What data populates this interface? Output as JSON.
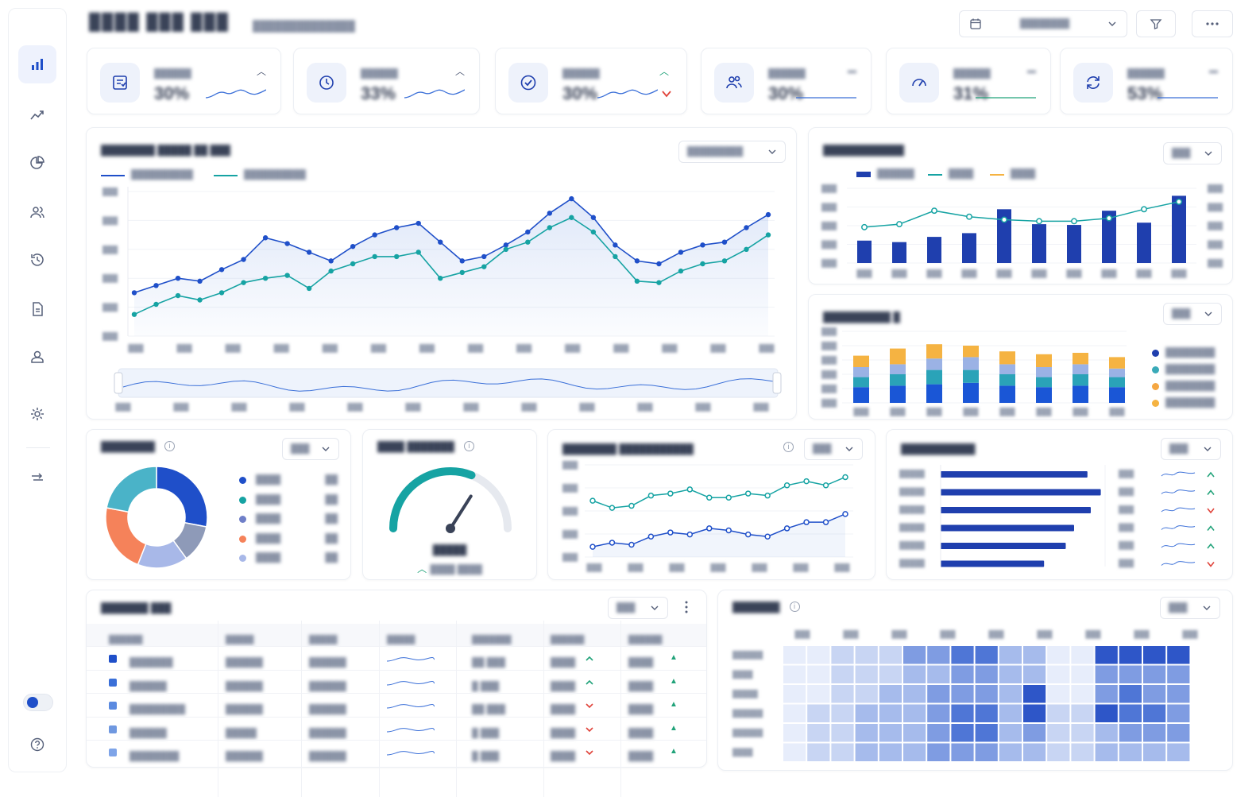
{
  "header": {
    "title": "████ ███ ███",
    "subtitle": "██████████████",
    "date_range": "████████"
  },
  "sidebar": {
    "items": [
      {
        "icon": "bar-chart-icon",
        "active": true
      },
      {
        "icon": "trend-line-icon"
      },
      {
        "icon": "pie-chart-icon"
      },
      {
        "icon": "users-icon"
      },
      {
        "icon": "history-icon"
      },
      {
        "icon": "document-icon"
      },
      {
        "icon": "user-badge-icon"
      },
      {
        "icon": "settings-icon"
      },
      {
        "icon": "switch-icon"
      },
      {
        "icon": "help-icon"
      }
    ]
  },
  "kpis": [
    {
      "icon": "report-icon",
      "label": "██████",
      "value": "30%",
      "trend": "up",
      "spark_color": "#3a6fd8"
    },
    {
      "icon": "clock-icon",
      "label": "██████",
      "value": "33%",
      "trend": "up",
      "spark_color": "#3a6fd8"
    },
    {
      "icon": "check-circle-icon",
      "label": "██████",
      "value": "30%",
      "trend": "down",
      "spark_color": "#3a6fd8"
    },
    {
      "icon": "users-icon",
      "label": "██████",
      "value": "30%",
      "trend": "flat",
      "spark_color": "#3a6fd8"
    },
    {
      "icon": "gauge-icon",
      "label": "██████",
      "value": "31%",
      "trend": "flat",
      "spark_color": "#22a37a"
    },
    {
      "icon": "refresh-icon",
      "label": "██████",
      "value": "53%",
      "trend": "flat",
      "spark_color": "#3a6fd8"
    }
  ],
  "main_chart": {
    "title": "████████ █████ ██ ███",
    "dropdown": "█████████",
    "legend": [
      "██████████",
      "██████████"
    ],
    "colors": [
      "#1f4fc9",
      "#16a3a3"
    ],
    "series_a": [
      30,
      35,
      40,
      38,
      46,
      53,
      68,
      64,
      58,
      52,
      62,
      70,
      75,
      78,
      65,
      52,
      55,
      63,
      72,
      85,
      95,
      82,
      63,
      52,
      50,
      58,
      63,
      65,
      75,
      84
    ],
    "series_b": [
      15,
      22,
      28,
      25,
      30,
      37,
      40,
      42,
      33,
      45,
      50,
      55,
      55,
      58,
      40,
      44,
      48,
      60,
      65,
      75,
      82,
      72,
      55,
      38,
      37,
      45,
      50,
      52,
      60,
      70
    ],
    "x_ticks": [
      "███",
      "███",
      "███",
      "███",
      "███",
      "███",
      "███",
      "███",
      "███",
      "███",
      "███",
      "███",
      "███",
      "███"
    ],
    "y_ticks": [
      "███",
      "███",
      "███",
      "███",
      "███",
      "███"
    ]
  },
  "combo_chart": {
    "title": "████████████",
    "dropdown": "███",
    "legend": [
      "██████",
      "████",
      "████"
    ],
    "bars": [
      30,
      28,
      35,
      40,
      72,
      52,
      51,
      70,
      54,
      90
    ],
    "line": [
      18,
      22,
      40,
      32,
      28,
      26,
      26,
      30,
      42,
      52
    ]
  },
  "stacked_chart": {
    "title": "██████████ █",
    "dropdown": "███",
    "stacks": [
      [
        22,
        14,
        14,
        16
      ],
      [
        24,
        16,
        14,
        22
      ],
      [
        26,
        20,
        16,
        20
      ],
      [
        28,
        18,
        18,
        16
      ],
      [
        24,
        16,
        14,
        18
      ],
      [
        22,
        14,
        14,
        18
      ],
      [
        24,
        16,
        14,
        16
      ],
      [
        22,
        14,
        12,
        16
      ]
    ],
    "stack_colors": [
      "#1a56d6",
      "#2aa3b8",
      "#8aa4e0",
      "#f5b342"
    ],
    "legend": [
      {
        "label": "████████",
        "color": "#1f3fae"
      },
      {
        "label": "████████",
        "color": "#3aaab8"
      },
      {
        "label": "████████",
        "color": "#f5a742"
      },
      {
        "label": "████████",
        "color": "#f5b342"
      }
    ]
  },
  "donut": {
    "title": "████████",
    "dropdown": "███",
    "slices": [
      {
        "value": 28,
        "color": "#1f4fc9",
        "label": "████",
        "pct": "██"
      },
      {
        "value": 12,
        "color": "#8e9ab8",
        "label": "████",
        "pct": "██"
      },
      {
        "value": 16,
        "color": "#a8b8e8",
        "label": "████",
        "pct": "██"
      },
      {
        "value": 22,
        "color": "#f5825a",
        "label": "████",
        "pct": "██"
      },
      {
        "value": 22,
        "color": "#4ab3c8",
        "label": "████",
        "pct": "██"
      }
    ],
    "legend_colors": [
      "#1f4fc9",
      "#16a3a3",
      "#6f7fc8",
      "#f5825a",
      "#a8b8e8"
    ]
  },
  "gauge": {
    "title": "████ ███████",
    "value_label": "█████",
    "sub_label": "████ ████",
    "level": 0.62,
    "color": "#16a3a3"
  },
  "dual_line": {
    "title": "████████ ███████████",
    "dropdown": "███",
    "series_a": [
      55,
      48,
      50,
      60,
      62,
      66,
      58,
      58,
      62,
      60,
      70,
      74,
      70,
      78
    ],
    "series_b": [
      10,
      14,
      12,
      20,
      24,
      22,
      28,
      26,
      22,
      20,
      28,
      34,
      34,
      42
    ],
    "colors": [
      "#16a3a3",
      "#1f4fc9"
    ]
  },
  "hbar": {
    "title": "███████████",
    "dropdown": "███",
    "values": [
      88,
      96,
      90,
      80,
      75,
      62
    ],
    "trends": [
      "up",
      "up",
      "down",
      "up",
      "up",
      "down"
    ]
  },
  "table": {
    "title": "███████ ███",
    "dropdown": "███",
    "headers": [
      "██████",
      "█████",
      "█████",
      "█████",
      "███████",
      "██████",
      "██████"
    ],
    "rows": [
      {
        "c1": "███████",
        "c2": "██████",
        "c3": "██████",
        "c5": "██ ███",
        "c6": "████",
        "c7": "████",
        "trend": "up",
        "color": "#1f4fc9"
      },
      {
        "c1": "██████",
        "c2": "██████",
        "c3": "██████",
        "c5": "█ ███",
        "c6": "████",
        "c7": "████",
        "trend": "up",
        "color": "#3a6fd8"
      },
      {
        "c1": "█████████",
        "c2": "██████",
        "c3": "██████",
        "c5": "██ ███",
        "c6": "████",
        "c7": "████",
        "trend": "down",
        "color": "#5b8ae0"
      },
      {
        "c1": "██████",
        "c2": "█████",
        "c3": "██████",
        "c5": "█ ███",
        "c6": "████",
        "c7": "████",
        "trend": "down",
        "color": "#6f98e0"
      },
      {
        "c1": "████████",
        "c2": "██████",
        "c3": "██████",
        "c5": "█ ███",
        "c6": "████",
        "c7": "████",
        "trend": "down",
        "color": "#7ea4e8"
      }
    ]
  },
  "heatmap": {
    "title": "███████",
    "dropdown": "███",
    "row_labels": [
      "██████",
      "████",
      "█████",
      "██████",
      "██████",
      "████"
    ],
    "col_labels": [
      "███",
      "███",
      "███",
      "███",
      "███",
      "███",
      "███",
      "███",
      "███"
    ],
    "values": [
      [
        1,
        1,
        2,
        2,
        2,
        4,
        4,
        5,
        5,
        3,
        3,
        1,
        1,
        6,
        6,
        6,
        6
      ],
      [
        1,
        1,
        2,
        2,
        2,
        3,
        3,
        4,
        4,
        3,
        3,
        1,
        1,
        4,
        4,
        4,
        4
      ],
      [
        1,
        1,
        2,
        2,
        3,
        3,
        4,
        4,
        4,
        3,
        6,
        1,
        1,
        4,
        5,
        4,
        4
      ],
      [
        1,
        2,
        2,
        3,
        3,
        3,
        4,
        5,
        5,
        3,
        6,
        2,
        2,
        6,
        5,
        5,
        4
      ],
      [
        1,
        2,
        2,
        3,
        3,
        3,
        4,
        5,
        5,
        3,
        4,
        2,
        2,
        3,
        4,
        4,
        4
      ],
      [
        1,
        2,
        2,
        3,
        3,
        3,
        4,
        4,
        4,
        3,
        3,
        2,
        2,
        3,
        3,
        3,
        3
      ]
    ]
  }
}
